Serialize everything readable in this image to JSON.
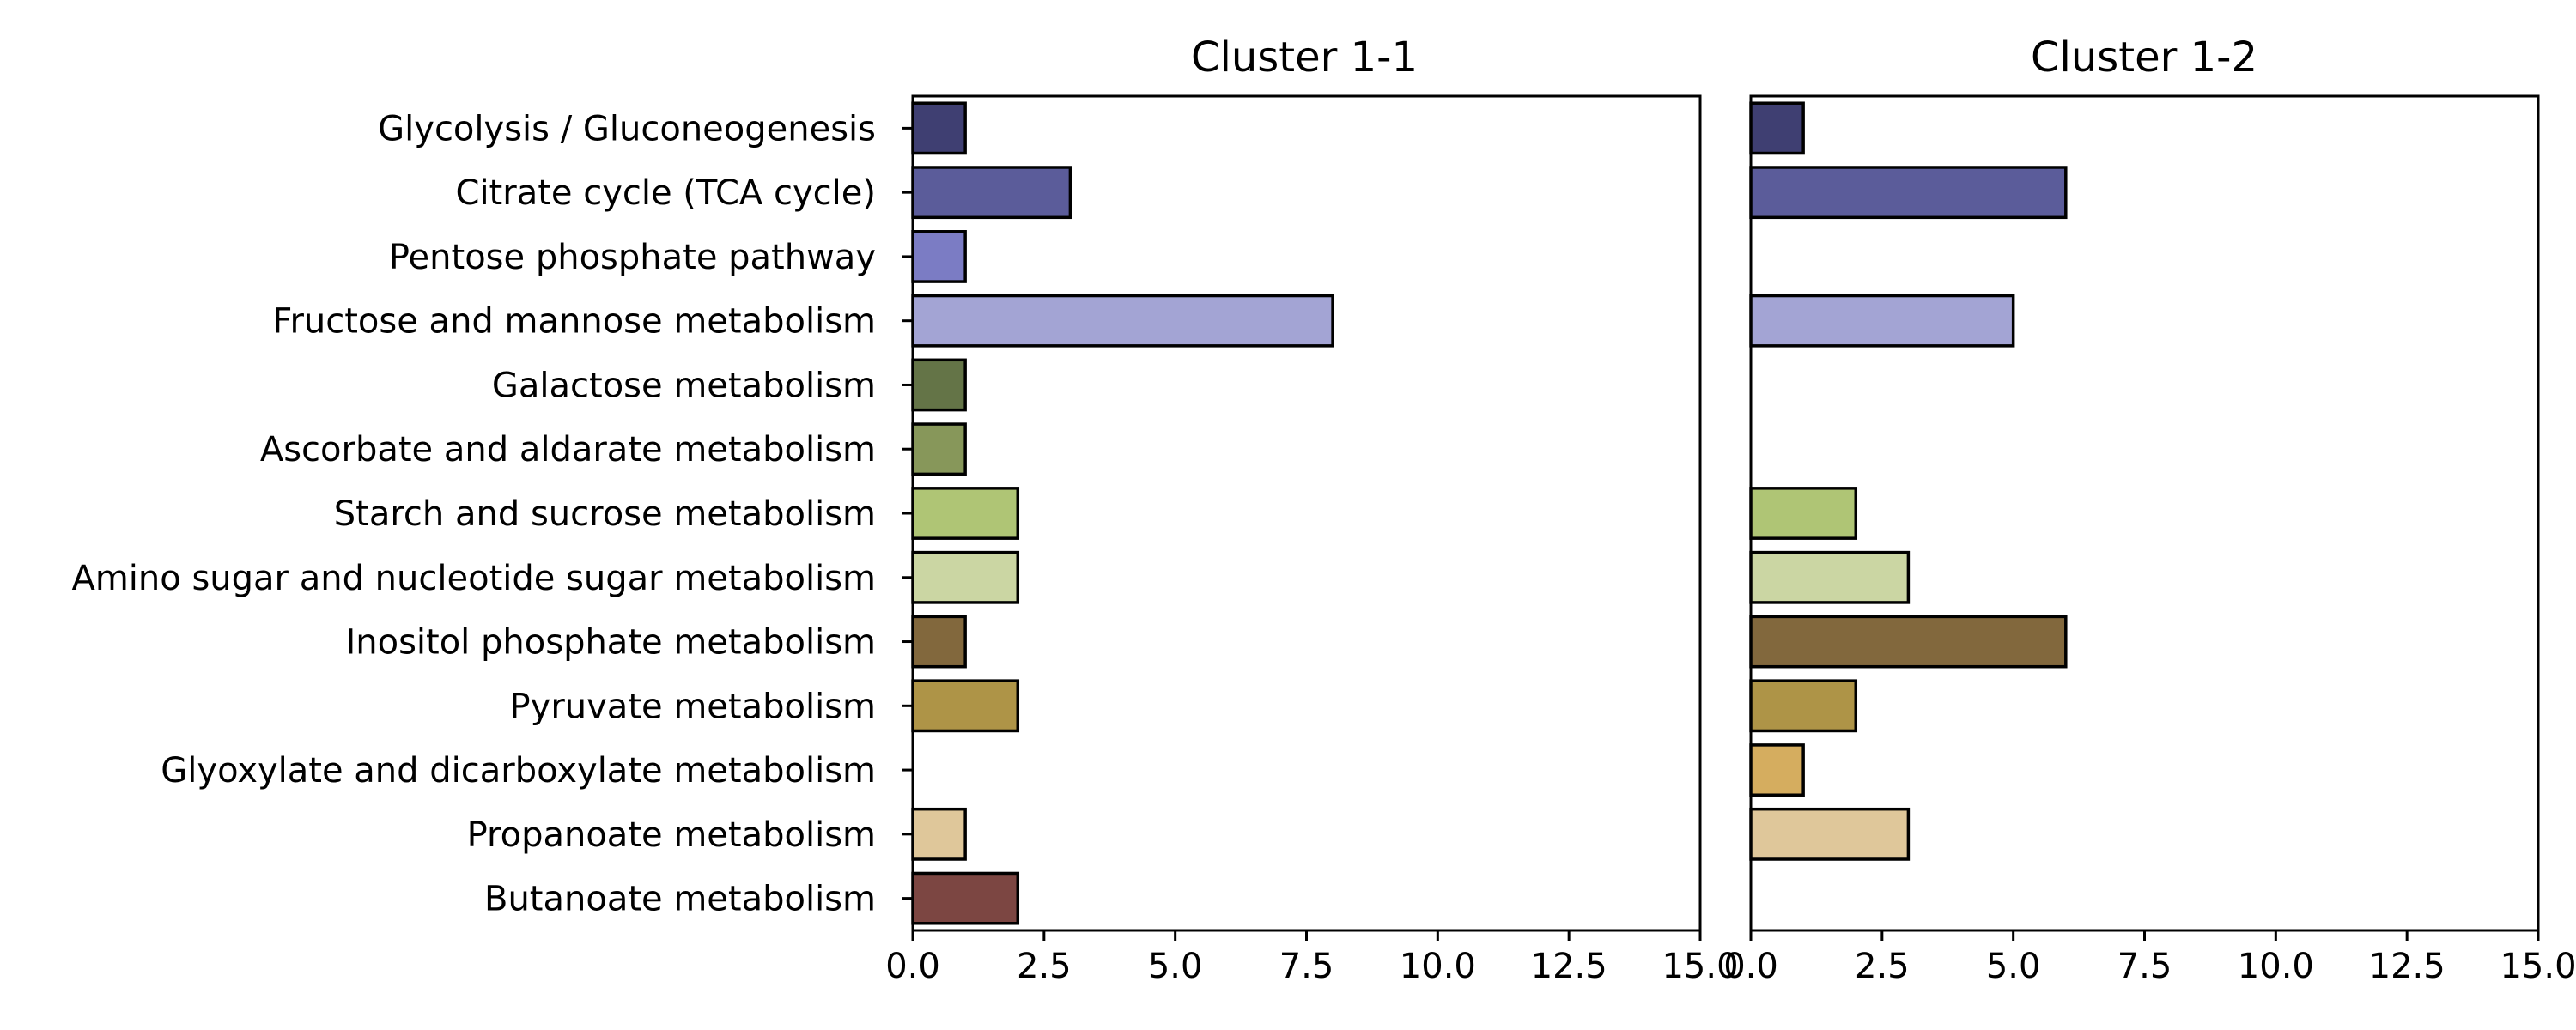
{
  "chart_data": {
    "type": "bar",
    "orientation": "horizontal",
    "categories": [
      "Glycolysis / Gluconeogenesis",
      "Citrate cycle (TCA cycle)",
      "Pentose phosphate pathway",
      "Fructose and mannose metabolism",
      "Galactose metabolism",
      "Ascorbate and aldarate metabolism",
      "Starch and sucrose metabolism",
      "Amino sugar and nucleotide sugar metabolism",
      "Inositol phosphate metabolism",
      "Pyruvate metabolism",
      "Glyoxylate and dicarboxylate metabolism",
      "Propanoate metabolism",
      "Butanoate metabolism"
    ],
    "colors": [
      "#3f3f72",
      "#5b5c9a",
      "#7b7cc4",
      "#a3a4d4",
      "#647447",
      "#87975a",
      "#afc575",
      "#cbd6a3",
      "#82683d",
      "#ae9447",
      "#d5ad5f",
      "#dfc79a",
      "#7c4642"
    ],
    "xlim": [
      0,
      15
    ],
    "xticks": [
      "0.0",
      "2.5",
      "5.0",
      "7.5",
      "10.0",
      "12.5",
      "15.0"
    ],
    "xtick_values": [
      0,
      2.5,
      5,
      7.5,
      10,
      12.5,
      15
    ],
    "grid": false,
    "panels": [
      {
        "title": "Cluster 1-1",
        "values": [
          1,
          3,
          1,
          8,
          1,
          1,
          2,
          2,
          1,
          2,
          0,
          1,
          2
        ]
      },
      {
        "title": "Cluster 1-2",
        "values": [
          1,
          6,
          0,
          5,
          0,
          0,
          2,
          3,
          6,
          2,
          1,
          3,
          0
        ]
      }
    ]
  }
}
